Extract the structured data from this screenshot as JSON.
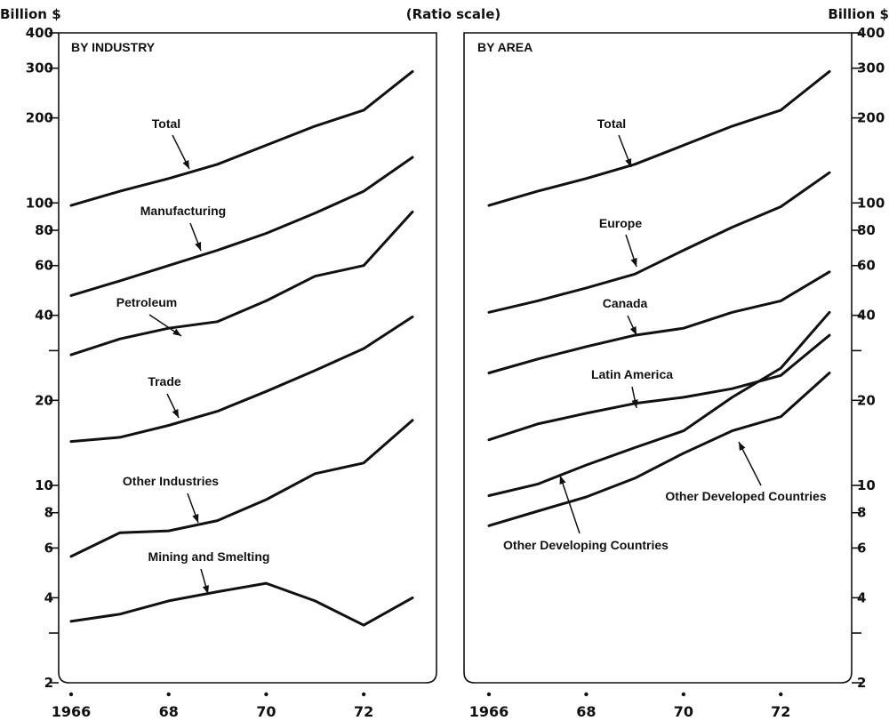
{
  "header": {
    "left_unit": "Billion $",
    "right_unit": "Billion $",
    "scale_note": "(Ratio scale)"
  },
  "chart_data": [
    {
      "type": "line",
      "title": "BY INDUSTRY",
      "yscale": "log",
      "ylim": [
        2,
        400
      ],
      "yticks_labeled": [
        2,
        4,
        6,
        8,
        10,
        20,
        40,
        60,
        80,
        100,
        200,
        300,
        400
      ],
      "yticks_minor": [
        3,
        30
      ],
      "xlim": [
        1966,
        1973
      ],
      "xtick_labels": [
        {
          "x": 1966,
          "label": "1966"
        },
        {
          "x": 1968,
          "label": "68"
        },
        {
          "x": 1970,
          "label": "70"
        },
        {
          "x": 1972,
          "label": "72"
        }
      ],
      "x": [
        1966,
        1967,
        1968,
        1969,
        1970,
        1971,
        1972,
        1973
      ],
      "series": [
        {
          "name": "Total",
          "values": [
            98,
            110,
            122,
            137,
            160,
            187,
            213,
            292
          ]
        },
        {
          "name": "Manufacturing",
          "values": [
            47,
            53,
            60,
            68,
            78,
            92,
            110,
            145
          ]
        },
        {
          "name": "Petroleum",
          "values": [
            29,
            33,
            36,
            38,
            45,
            55,
            60,
            93
          ]
        },
        {
          "name": "Trade",
          "values": [
            14.3,
            14.8,
            16.3,
            18.3,
            21.5,
            25.5,
            30.5,
            39.5
          ]
        },
        {
          "name": "Other Industries",
          "values": [
            5.6,
            6.8,
            6.9,
            7.5,
            8.9,
            11,
            12,
            17
          ]
        },
        {
          "name": "Mining and Smelting",
          "values": [
            3.3,
            3.5,
            3.9,
            4.2,
            4.5,
            3.9,
            3.2,
            4.0
          ]
        }
      ]
    },
    {
      "type": "line",
      "title": "BY AREA",
      "yscale": "log",
      "ylim": [
        2,
        400
      ],
      "yticks_labeled": [
        2,
        4,
        6,
        8,
        10,
        20,
        40,
        60,
        80,
        100,
        200,
        300,
        400
      ],
      "yticks_minor": [
        3,
        30
      ],
      "xlim": [
        1966,
        1973
      ],
      "xtick_labels": [
        {
          "x": 1966,
          "label": "1966"
        },
        {
          "x": 1968,
          "label": "68"
        },
        {
          "x": 1970,
          "label": "70"
        },
        {
          "x": 1972,
          "label": "72"
        }
      ],
      "x": [
        1966,
        1967,
        1968,
        1969,
        1970,
        1971,
        1972,
        1973
      ],
      "series": [
        {
          "name": "Total",
          "values": [
            98,
            110,
            122,
            137,
            160,
            187,
            213,
            292
          ]
        },
        {
          "name": "Europe",
          "values": [
            41,
            45,
            50,
            56,
            68,
            82,
            97,
            128
          ]
        },
        {
          "name": "Canada",
          "values": [
            25,
            28,
            31,
            34,
            36,
            41,
            45,
            57
          ]
        },
        {
          "name": "Latin America",
          "values": [
            14.5,
            16.5,
            18,
            19.5,
            20.5,
            22,
            24.5,
            34
          ]
        },
        {
          "name": "Other Developed Countries",
          "values": [
            7.2,
            8.1,
            9.1,
            10.6,
            13,
            15.6,
            17.5,
            25
          ]
        },
        {
          "name": "Other Developing Countries",
          "values": [
            9.2,
            10.1,
            11.8,
            13.6,
            15.6,
            20.5,
            26,
            41
          ]
        }
      ]
    }
  ]
}
